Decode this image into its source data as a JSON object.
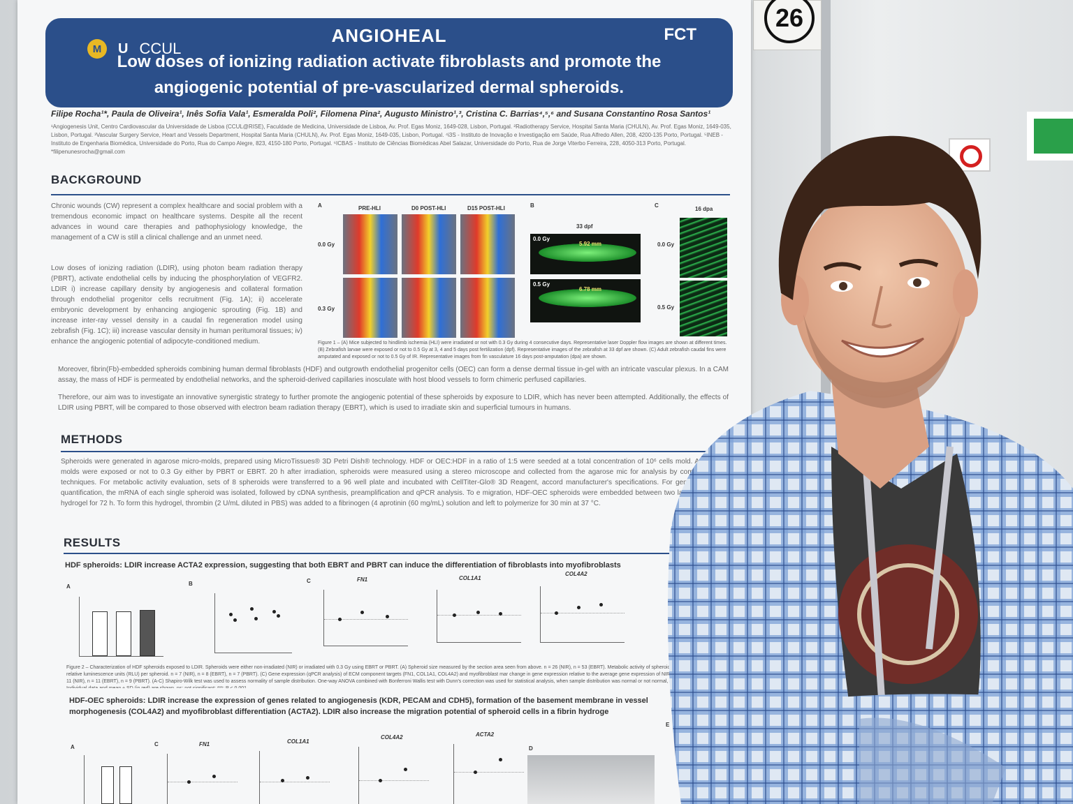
{
  "booth_number": "26",
  "poster": {
    "acronym": "ANGIOHEAL",
    "title": "Low doses of ionizing radiation activate fibroblasts and promote the angiogenic potential of pre-vascularized dermal spheroids.",
    "logos": {
      "m": "M",
      "u": "U",
      "ccul": "CCUL",
      "fct": "FCT"
    },
    "authors": "Filipe Rocha¹*, Paula de Oliveira¹, Inês Sofia Vala¹, Esmeralda Poli², Filomena Pina², Augusto Ministro¹,³, Cristina C. Barrias⁴,⁵,⁶ and Susana Constantino Rosa Santos¹",
    "affiliations": "¹Angiogenesis Unit, Centro Cardiovascular da Universidade de Lisboa (CCUL@RISE), Faculdade de Medicina, Universidade de Lisboa, Av. Prof. Egas Moniz, 1649-028, Lisbon, Portugal. ²Radiotherapy Service, Hospital Santa Maria (CHULN), Av. Prof. Egas Moniz, 1649-035, Lisbon, Portugal. ³Vascular Surgery Service, Heart and Vessels Department, Hospital Santa Maria (CHULN), Av. Prof. Egas Moniz, 1649-035, Lisbon, Portugal. ⁴i3S - Instituto de Inovação e Investigação em Saúde, Rua Alfredo Allen, 208, 4200-135 Porto, Portugal. ⁵INEB - Instituto de Engenharia Biomédica, Universidade do Porto, Rua do Campo Alegre, 823, 4150-180 Porto, Portugal. ⁶ICBAS - Instituto de Ciências Biomédicas Abel Salazar, Universidade do Porto, Rua de Jorge Viterbo Ferreira, 228, 4050-313 Porto, Portugal. *filipenunesrocha@gmail.com",
    "background": {
      "heading": "BACKGROUND",
      "p1": "Chronic wounds (CW) represent a complex healthcare and social problem with a tremendous economic impact on healthcare systems. Despite all the recent advances in wound care therapies and pathophysiology knowledge, the management of a CW is still a clinical challenge and an unmet need.",
      "p2": "Low doses of ionizing radiation (LDIR), using photon beam radiation therapy (PBRT), activate endothelial cells by inducing the phosphorylation of VEGFR2. LDIR i) increase capillary density by angiogenesis and collateral formation through endothelial progenitor cells recruitment (Fig. 1A); ii) accelerate embryonic development by enhancing angiogenic sprouting (Fig. 1B) and increase inter-ray vessel density in a caudal fin regeneration model using zebrafish (Fig. 1C); iii) increase vascular density in human peritumoral tissues; iv) enhance the angiogenic potential of adipocyte-conditioned medium.",
      "p3": "Moreover, fibrin(Fb)-embedded spheroids combining human dermal fibroblasts (HDF) and outgrowth endothelial progenitor cells (OEC) can form a dense dermal tissue in-gel with an intricate vascular plexus. In a CAM assay, the mass of HDF is permeated by endothelial networks, and the spheroid-derived capillaries inosculate with host blood vessels to form chimeric perfused capillaries.",
      "p4": "Therefore, our aim was to investigate an innovative synergistic strategy to further promote the angiogenic potential of these spheroids by exposure to LDIR, which has never been attempted. Additionally, the effects of LDIR using PBRT, will be compared to those observed with electron beam radiation therapy (EBRT), which is used to irradiate skin and superficial tumours in humans."
    },
    "figure1": {
      "label_a": "A",
      "label_b": "B",
      "label_c": "C",
      "cols": [
        "PRE-HLI",
        "D0 POST-HLI",
        "D15 POST-HLI"
      ],
      "rows": [
        "0.0 Gy",
        "0.3 Gy"
      ],
      "b_title": "33 dpf",
      "b_tags": [
        "0.0 Gy",
        "0.5 Gy"
      ],
      "b_lengths": [
        "5.92 mm",
        "6.78 mm"
      ],
      "c_title": "16 dpa",
      "c_rows": [
        "0.0 Gy",
        "0.5 Gy"
      ],
      "caption": "Figure 1 – (A) Mice subjected to hindlimb ischemia (HLI) were irradiated or not with 0.3 Gy during 4 consecutive days. Representative laser Doppler flow images are shown at different times. (B) Zebrafish larvae were exposed or not to 0.5 Gy at 3, 4 and 5 days post fertilization (dpf). Representative images of the zebrafish at 33 dpf are shown. (C) Adult zebrafish caudal fins were amputated and exposed or not to 0.5 Gy of IR. Representative images from fin vasculature 16 days post-amputation (dpa) are shown."
    },
    "methods": {
      "heading": "METHODS",
      "text": "Spheroids were generated in agarose micro-molds, prepared using MicroTissues® 3D Petri Dish® technology. HDF or OEC:HDF in a ratio of 1:5 were seeded at a total concentration of 10⁶ cells mold. After 24 h, molds were exposed or not to 0.3 Gy either by PBRT or EBRT. 20 h after irradiation, spheroids were measured using a stereo microscope and collected from the agarose mic for analysis by complementary techniques. For metabolic activity evaluation, sets of 8 spheroids were transferred to a 96 well plate and incubated with CellTiter-Glo® 3D Reagent, accord manufacturer's specifications. For gene expression quantification, the mRNA of each single spheroid was isolated, followed by cDNA synthesis, preamplification and qPCR analysis. To e migration, HDF-OEC spheroids were embedded between two layers of a fibrin hydrogel for 72 h. To form this hydrogel, thrombin (2 U/mL diluted in PBS) was added to a fibrinogen (4 aprotinin (60 mg/mL) solution and left to polymerize for 30 min at 37 °C."
    },
    "results": {
      "heading": "RESULTS",
      "sub1": "HDF spheroids: LDIR increase ACTA2 expression, suggesting that both EBRT and PBRT can induce the differentiation of fibroblasts into myofibroblasts",
      "charts1": [
        {
          "label": "A",
          "title": "",
          "ylabel": "Section Area (µm²)",
          "cats": [
            "NIR",
            "EBRT",
            "PBRT"
          ]
        },
        {
          "label": "B",
          "title": "",
          "ylabel": "RLU per spheroid",
          "cats": [
            "NIR",
            "EBRT",
            "PBRT"
          ]
        },
        {
          "label": "C",
          "title": "FN1",
          "ylabel": "Fold change",
          "cats": [
            "NIR",
            "EBRT",
            "PBRT"
          ]
        },
        {
          "label": "",
          "title": "COL1A1",
          "ylabel": "Fold change",
          "cats": [
            "NIR",
            "EBRT",
            "PBRT"
          ]
        },
        {
          "label": "",
          "title": "COL4A2",
          "ylabel": "Fold change",
          "cats": [
            "NIR",
            "EBRT",
            "PBRT"
          ]
        }
      ],
      "caption2": "Figure 2 – Characterization of HDF spheroids exposed to LDIR. Spheroids were either non-irradiated (NIR) or irradiated with 0.3 Gy using EBRT or PBRT. (A) Spheroid size measured by the section area seen from above. n = 26 (NIR), n = 53 (EBRT). Metabolic activity of spheroids expressed as relative luminescence units (RLU) per spheroid. n = 7 (NIR), n = 8 (EBRT), n = 7 (PBRT). (C) Gene expression (qPCR analysis) of ECM component targets (FN1, COL1A1, COL4A2) and myofibroblast mar change in gene expression relative to the average gene expression of NIR is represented. n = 11 (NIR), n = 11 (EBRT), n = 9 (PBRT). (A-C) Shapiro-Wilk test was used to assess normality of sample distribution. One-way ANOVA combined with Bonferroni Wallis test with Dunn's correction was used for statistical analysis, when sample distribution was normal or not normal, respectively. Individual data and mean ± SD (in red) are shown. ns: not significant; ***: P < 0.001.",
      "sub2": "HDF-OEC spheroids: LDIR increase the expression of genes related to angiogenesis (KDR, PECAM and CDH5), formation of the basement membrane in vessel morphogenesis (COL4A2) and myofibroblast differentiation (ACTA2). LDIR also increase the migration potential of spheroid cells in a fibrin hydroge",
      "charts2": [
        {
          "label": "A",
          "title": ""
        },
        {
          "label": "C",
          "title": "FN1"
        },
        {
          "label": "",
          "title": "COL1A1"
        },
        {
          "label": "",
          "title": "COL4A2"
        },
        {
          "label": "",
          "title": "ACTA2"
        },
        {
          "label": "D",
          "title": ""
        },
        {
          "label": "E",
          "title": ""
        }
      ]
    }
  }
}
